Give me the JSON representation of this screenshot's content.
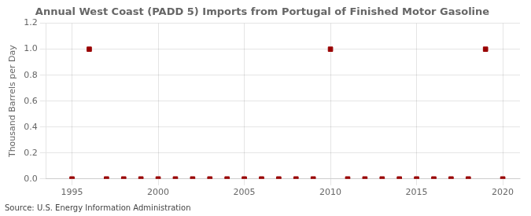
{
  "chart_data": {
    "type": "scatter",
    "title": "Annual West Coast (PADD 5) Imports from Portugal of Finished Motor Gasoline",
    "ylabel": "Thousand Barrels per Day",
    "source": "Source: U.S. Energy Information Administration",
    "x": [
      1995,
      1996,
      1997,
      1998,
      1999,
      2000,
      2001,
      2002,
      2003,
      2004,
      2005,
      2006,
      2007,
      2008,
      2009,
      2010,
      2011,
      2012,
      2013,
      2014,
      2015,
      2016,
      2017,
      2018,
      2019,
      2020
    ],
    "values": [
      0.0,
      1.0,
      0.0,
      0.0,
      0.0,
      0.0,
      0.0,
      0.0,
      0.0,
      0.0,
      0.0,
      0.0,
      0.0,
      0.0,
      0.0,
      1.0,
      0.0,
      0.0,
      0.0,
      0.0,
      0.0,
      0.0,
      0.0,
      0.0,
      1.0,
      0.0
    ],
    "color": "#990000",
    "marker": "square",
    "xlim": [
      1993.5,
      2021
    ],
    "xticks": [
      1995,
      2000,
      2005,
      2010,
      2015,
      2020
    ],
    "ylim": [
      0.0,
      1.2
    ],
    "yticks": [
      {
        "value": 0.0,
        "label": "0.0"
      },
      0.2,
      0.4,
      0.6,
      0.8,
      {
        "value": 1.0,
        "label": "1.0"
      },
      1.2
    ],
    "grid": true
  }
}
